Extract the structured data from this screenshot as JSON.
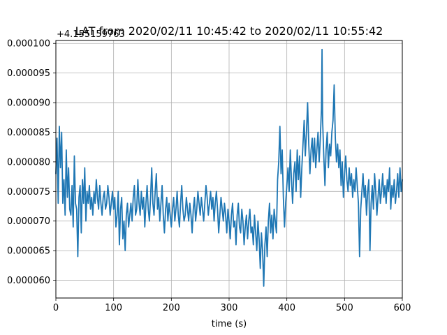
{
  "chart_data": {
    "type": "line",
    "title": "LAT from 2020/02/11 10:45:42 to 2020/02/11 10:55:42",
    "xlabel": "time (s)",
    "ylabel": "",
    "offset_text": "+4.155159763",
    "xlim": [
      0,
      600
    ],
    "ylim": [
      5.7e-05,
      0.0001005
    ],
    "x_ticks": [
      0,
      100,
      200,
      300,
      400,
      500,
      600
    ],
    "y_ticks": [
      6e-05,
      6.5e-05,
      7e-05,
      7.5e-05,
      8e-05,
      8.5e-05,
      9e-05,
      9.5e-05,
      0.0001
    ],
    "x_tick_labels": [
      "0",
      "100",
      "200",
      "300",
      "400",
      "500",
      "600"
    ],
    "y_tick_labels": [
      "0.000060",
      "0.000065",
      "0.000070",
      "0.000075",
      "0.000080",
      "0.000085",
      "0.000090",
      "0.000095",
      "0.000100"
    ],
    "grid": true,
    "series": [
      {
        "color": "#1f77b4",
        "points": [
          [
            0,
            7.8e-05
          ],
          [
            2,
            8.4e-05
          ],
          [
            4,
            7.3e-05
          ],
          [
            6,
            8.6e-05
          ],
          [
            8,
            7.9e-05
          ],
          [
            10,
            8.5e-05
          ],
          [
            12,
            7.3e-05
          ],
          [
            14,
            7.7e-05
          ],
          [
            16,
            7.1e-05
          ],
          [
            18,
            8.2e-05
          ],
          [
            20,
            7.4e-05
          ],
          [
            22,
            7.9e-05
          ],
          [
            24,
            7.2e-05
          ],
          [
            26,
            7.1e-05
          ],
          [
            28,
            7.6e-05
          ],
          [
            30,
            6.9e-05
          ],
          [
            32,
            8.1e-05
          ],
          [
            34,
            7.3e-05
          ],
          [
            36,
            7.2e-05
          ],
          [
            38,
            6.4e-05
          ],
          [
            40,
            7.4e-05
          ],
          [
            42,
            7.6e-05
          ],
          [
            44,
            6.8e-05
          ],
          [
            46,
            7.7e-05
          ],
          [
            48,
            7.3e-05
          ],
          [
            50,
            7.9e-05
          ],
          [
            52,
            7e-05
          ],
          [
            54,
            7.5e-05
          ],
          [
            56,
            7.3e-05
          ],
          [
            58,
            7.6e-05
          ],
          [
            60,
            7.2e-05
          ],
          [
            62,
            7.4e-05
          ],
          [
            64,
            7.1e-05
          ],
          [
            66,
            7.5e-05
          ],
          [
            68,
            7.3e-05
          ],
          [
            70,
            7.7e-05
          ],
          [
            72,
            7.4e-05
          ],
          [
            74,
            7.2e-05
          ],
          [
            76,
            7.6e-05
          ],
          [
            78,
            7.3e-05
          ],
          [
            80,
            7.1e-05
          ],
          [
            82,
            7.4e-05
          ],
          [
            84,
            7.5e-05
          ],
          [
            86,
            7.2e-05
          ],
          [
            88,
            7.3e-05
          ],
          [
            90,
            7.6e-05
          ],
          [
            92,
            7.4e-05
          ],
          [
            94,
            7.1e-05
          ],
          [
            96,
            7.3e-05
          ],
          [
            98,
            7.5e-05
          ],
          [
            100,
            7.2e-05
          ],
          [
            102,
            7.4e-05
          ],
          [
            104,
            6.9e-05
          ],
          [
            106,
            7.1e-05
          ],
          [
            108,
            7.5e-05
          ],
          [
            110,
            6.6e-05
          ],
          [
            112,
            7.2e-05
          ],
          [
            114,
            7.4e-05
          ],
          [
            116,
            6.7e-05
          ],
          [
            118,
            7e-05
          ],
          [
            120,
            6.5e-05
          ],
          [
            122,
            7.1e-05
          ],
          [
            124,
            7.3e-05
          ],
          [
            126,
            6.9e-05
          ],
          [
            128,
            7.1e-05
          ],
          [
            130,
            7.3e-05
          ],
          [
            132,
            7e-05
          ],
          [
            134,
            7.4e-05
          ],
          [
            136,
            7.6e-05
          ],
          [
            138,
            7.1e-05
          ],
          [
            140,
            7.2e-05
          ],
          [
            142,
            7.7e-05
          ],
          [
            144,
            7.3e-05
          ],
          [
            146,
            7.1e-05
          ],
          [
            148,
            7.5e-05
          ],
          [
            150,
            7.2e-05
          ],
          [
            152,
            7.4e-05
          ],
          [
            154,
            6.9e-05
          ],
          [
            156,
            7.3e-05
          ],
          [
            158,
            7.6e-05
          ],
          [
            160,
            7.2e-05
          ],
          [
            162,
            7e-05
          ],
          [
            164,
            7.4e-05
          ],
          [
            166,
            7.9e-05
          ],
          [
            168,
            7.3e-05
          ],
          [
            170,
            7.1e-05
          ],
          [
            172,
            7.5e-05
          ],
          [
            174,
            7.8e-05
          ],
          [
            176,
            7.2e-05
          ],
          [
            178,
            7.4e-05
          ],
          [
            180,
            7e-05
          ],
          [
            182,
            7.3e-05
          ],
          [
            184,
            7.6e-05
          ],
          [
            186,
            7.1e-05
          ],
          [
            188,
            6.8e-05
          ],
          [
            190,
            7.2e-05
          ],
          [
            192,
            7.4e-05
          ],
          [
            194,
            7e-05
          ],
          [
            196,
            7.3e-05
          ],
          [
            198,
            7.1e-05
          ],
          [
            200,
            6.9e-05
          ],
          [
            202,
            7.2e-05
          ],
          [
            204,
            7.4e-05
          ],
          [
            206,
            7e-05
          ],
          [
            208,
            7.2e-05
          ],
          [
            210,
            7.5e-05
          ],
          [
            212,
            7.1e-05
          ],
          [
            214,
            6.9e-05
          ],
          [
            216,
            7.3e-05
          ],
          [
            218,
            7.6e-05
          ],
          [
            220,
            7.2e-05
          ],
          [
            222,
            7e-05
          ],
          [
            224,
            7.1e-05
          ],
          [
            226,
            7.4e-05
          ],
          [
            228,
            7.2e-05
          ],
          [
            230,
            7e-05
          ],
          [
            232,
            7.3e-05
          ],
          [
            234,
            7.1e-05
          ],
          [
            236,
            6.8e-05
          ],
          [
            238,
            7.2e-05
          ],
          [
            240,
            7.4e-05
          ],
          [
            242,
            7e-05
          ],
          [
            244,
            7.2e-05
          ],
          [
            246,
            7.5e-05
          ],
          [
            248,
            7.3e-05
          ],
          [
            250,
            7.1e-05
          ],
          [
            252,
            7.4e-05
          ],
          [
            254,
            7.2e-05
          ],
          [
            256,
            7e-05
          ],
          [
            258,
            7.3e-05
          ],
          [
            260,
            7.6e-05
          ],
          [
            262,
            7.4e-05
          ],
          [
            264,
            7.1e-05
          ],
          [
            266,
            7.3e-05
          ],
          [
            268,
            7.5e-05
          ],
          [
            270,
            7.2e-05
          ],
          [
            272,
            7.4e-05
          ],
          [
            274,
            7e-05
          ],
          [
            276,
            7.3e-05
          ],
          [
            278,
            7.5e-05
          ],
          [
            280,
            7.2e-05
          ],
          [
            282,
            6.8e-05
          ],
          [
            284,
            7.1e-05
          ],
          [
            286,
            7.4e-05
          ],
          [
            288,
            7.2e-05
          ],
          [
            290,
            7e-05
          ],
          [
            292,
            7.3e-05
          ],
          [
            294,
            7.1e-05
          ],
          [
            296,
            6.8e-05
          ],
          [
            298,
            7.2e-05
          ],
          [
            300,
            7e-05
          ],
          [
            302,
            6.7e-05
          ],
          [
            304,
            7.1e-05
          ],
          [
            306,
            7.3e-05
          ],
          [
            308,
            6.9e-05
          ],
          [
            310,
            7e-05
          ],
          [
            312,
            6.6e-05
          ],
          [
            314,
            7.1e-05
          ],
          [
            316,
            7.3e-05
          ],
          [
            318,
            6.9e-05
          ],
          [
            320,
            6.8e-05
          ],
          [
            322,
            7.2e-05
          ],
          [
            324,
            7e-05
          ],
          [
            326,
            6.6e-05
          ],
          [
            328,
            6.9e-05
          ],
          [
            330,
            7.1e-05
          ],
          [
            332,
            6.7e-05
          ],
          [
            334,
            7e-05
          ],
          [
            336,
            7.2e-05
          ],
          [
            338,
            6.8e-05
          ],
          [
            340,
            6.9e-05
          ],
          [
            342,
            6.6e-05
          ],
          [
            344,
            7.1e-05
          ],
          [
            346,
            6.8e-05
          ],
          [
            348,
            6.5e-05
          ],
          [
            350,
            7e-05
          ],
          [
            352,
            6.7e-05
          ],
          [
            354,
            6.2e-05
          ],
          [
            356,
            6.8e-05
          ],
          [
            358,
            6.5e-05
          ],
          [
            360,
            5.9e-05
          ],
          [
            362,
            6.6e-05
          ],
          [
            364,
            6.9e-05
          ],
          [
            366,
            6.4e-05
          ],
          [
            368,
            7e-05
          ],
          [
            370,
            7.3e-05
          ],
          [
            372,
            6.8e-05
          ],
          [
            374,
            7.1e-05
          ],
          [
            376,
            6.7e-05
          ],
          [
            378,
            7.2e-05
          ],
          [
            380,
            7e-05
          ],
          [
            382,
            6.8e-05
          ],
          [
            384,
            7.7e-05
          ],
          [
            386,
            8e-05
          ],
          [
            388,
            8.6e-05
          ],
          [
            390,
            7.8e-05
          ],
          [
            392,
            8.2e-05
          ],
          [
            394,
            7.4e-05
          ],
          [
            396,
            6.9e-05
          ],
          [
            398,
            7.3e-05
          ],
          [
            400,
            7.6e-05
          ],
          [
            402,
            7.9e-05
          ],
          [
            404,
            7.5e-05
          ],
          [
            406,
            8.2e-05
          ],
          [
            408,
            7.7e-05
          ],
          [
            410,
            7.3e-05
          ],
          [
            412,
            7.8e-05
          ],
          [
            414,
            8e-05
          ],
          [
            416,
            7.5e-05
          ],
          [
            418,
            8.2e-05
          ],
          [
            420,
            7.7e-05
          ],
          [
            422,
            8.1e-05
          ],
          [
            424,
            7.4e-05
          ],
          [
            426,
            7.9e-05
          ],
          [
            428,
            8.3e-05
          ],
          [
            430,
            8.7e-05
          ],
          [
            432,
            8.1e-05
          ],
          [
            434,
            8.5e-05
          ],
          [
            436,
            9e-05
          ],
          [
            438,
            8.3e-05
          ],
          [
            440,
            7.8e-05
          ],
          [
            442,
            8.2e-05
          ],
          [
            444,
            8.4e-05
          ],
          [
            446,
            8e-05
          ],
          [
            448,
            8.4e-05
          ],
          [
            450,
            7.9e-05
          ],
          [
            452,
            8.2e-05
          ],
          [
            454,
            8.5e-05
          ],
          [
            456,
            8e-05
          ],
          [
            458,
            8.4e-05
          ],
          [
            460,
            8.9e-05
          ],
          [
            461,
            9.9e-05
          ],
          [
            462,
            8.7e-05
          ],
          [
            464,
            8.1e-05
          ],
          [
            466,
            7.6e-05
          ],
          [
            468,
            8.2e-05
          ],
          [
            470,
            8.5e-05
          ],
          [
            472,
            7.9e-05
          ],
          [
            474,
            8.3e-05
          ],
          [
            476,
            8.1e-05
          ],
          [
            478,
            8.5e-05
          ],
          [
            480,
            8.7e-05
          ],
          [
            482,
            9.3e-05
          ],
          [
            484,
            8.4e-05
          ],
          [
            486,
            8e-05
          ],
          [
            488,
            8.3e-05
          ],
          [
            490,
            7.9e-05
          ],
          [
            492,
            8.2e-05
          ],
          [
            494,
            7.6e-05
          ],
          [
            496,
            8e-05
          ],
          [
            498,
            7.4e-05
          ],
          [
            500,
            7.8e-05
          ],
          [
            502,
            8.1e-05
          ],
          [
            504,
            7.7e-05
          ],
          [
            506,
            7.5e-05
          ],
          [
            508,
            7.9e-05
          ],
          [
            510,
            7.6e-05
          ],
          [
            512,
            7.8e-05
          ],
          [
            514,
            7.4e-05
          ],
          [
            516,
            7.7e-05
          ],
          [
            518,
            7.5e-05
          ],
          [
            520,
            7.9e-05
          ],
          [
            522,
            7.6e-05
          ],
          [
            524,
            7.3e-05
          ],
          [
            526,
            6.4e-05
          ],
          [
            528,
            7.2e-05
          ],
          [
            530,
            7.5e-05
          ],
          [
            532,
            7.8e-05
          ],
          [
            534,
            7.4e-05
          ],
          [
            536,
            7.6e-05
          ],
          [
            538,
            7.1e-05
          ],
          [
            540,
            7.5e-05
          ],
          [
            542,
            7.7e-05
          ],
          [
            544,
            6.5e-05
          ],
          [
            546,
            7.3e-05
          ],
          [
            548,
            7.6e-05
          ],
          [
            550,
            7.2e-05
          ],
          [
            552,
            7.8e-05
          ],
          [
            554,
            7.5e-05
          ],
          [
            556,
            7.1e-05
          ],
          [
            558,
            7.4e-05
          ],
          [
            560,
            7.7e-05
          ],
          [
            562,
            7.3e-05
          ],
          [
            564,
            7.5e-05
          ],
          [
            566,
            7.8e-05
          ],
          [
            568,
            7.4e-05
          ],
          [
            570,
            7.6e-05
          ],
          [
            572,
            7.3e-05
          ],
          [
            574,
            7.7e-05
          ],
          [
            576,
            7.5e-05
          ],
          [
            578,
            7.9e-05
          ],
          [
            580,
            7.2e-05
          ],
          [
            582,
            7.6e-05
          ],
          [
            584,
            7.4e-05
          ],
          [
            586,
            7.7e-05
          ],
          [
            588,
            7.3e-05
          ],
          [
            590,
            7.5e-05
          ],
          [
            592,
            7.8e-05
          ],
          [
            594,
            7.4e-05
          ],
          [
            596,
            7.9e-05
          ],
          [
            598,
            7.5e-05
          ],
          [
            600,
            7.7e-05
          ]
        ]
      }
    ]
  }
}
